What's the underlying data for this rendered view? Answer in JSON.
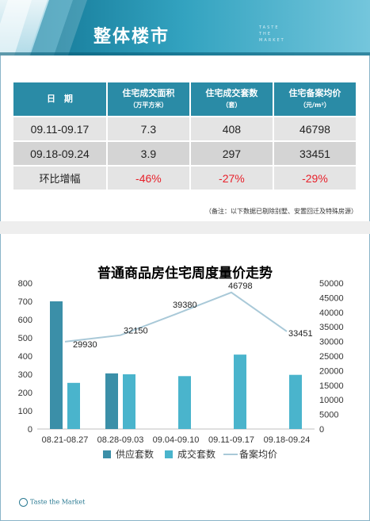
{
  "banner": {
    "title": "整体楼市",
    "tagline": [
      "TASTE",
      "THE",
      "MARKET"
    ]
  },
  "table": {
    "headers": [
      {
        "label": "日　期",
        "unit": ""
      },
      {
        "label": "住宅成交面积",
        "unit": "（万平方米）"
      },
      {
        "label": "住宅成交套数",
        "unit": "（套）"
      },
      {
        "label": "住宅备案均价",
        "unit": "（元/m²）"
      }
    ],
    "rows": [
      [
        "09.11-09.17",
        "7.3",
        "408",
        "46798"
      ],
      [
        "09.18-09.24",
        "3.9",
        "297",
        "33451"
      ],
      [
        "环比增幅",
        "-46%",
        "-27%",
        "-29%"
      ]
    ]
  },
  "note": "（备注：以下数据已剔除别墅、安置回迁及特殊房源）",
  "chart_data": {
    "type": "bar",
    "title": "普通商品房住宅周度量价走势",
    "categories": [
      "08.21-08.27",
      "08.28-09.03",
      "09.04-09.10",
      "09.11-09.17",
      "09.18-09.24"
    ],
    "series": [
      {
        "name": "供应套数",
        "type": "bar",
        "axis": "left",
        "color": "#3b8fa8",
        "values": [
          700,
          305,
          null,
          null,
          null
        ]
      },
      {
        "name": "成交套数",
        "type": "bar",
        "axis": "left",
        "color": "#4ab4cc",
        "values": [
          253,
          300,
          290,
          408,
          297
        ]
      },
      {
        "name": "备案均价",
        "type": "line",
        "axis": "right",
        "color": "#a9c9d8",
        "values": [
          29930,
          32150,
          39380,
          46798,
          33451
        ]
      }
    ],
    "y_left": {
      "min": 0,
      "max": 800,
      "ticks": [
        0,
        100,
        200,
        300,
        400,
        500,
        600,
        700,
        800
      ]
    },
    "y_right": {
      "min": 0,
      "max": 50000,
      "ticks": [
        0,
        5000,
        10000,
        15000,
        20000,
        25000,
        30000,
        35000,
        40000,
        45000,
        50000
      ]
    },
    "line_labels": [
      "29930",
      "32150",
      "39380",
      "46798",
      "33451"
    ],
    "legend_position": "bottom"
  },
  "footer": {
    "logo_text": "Taste the Market"
  }
}
